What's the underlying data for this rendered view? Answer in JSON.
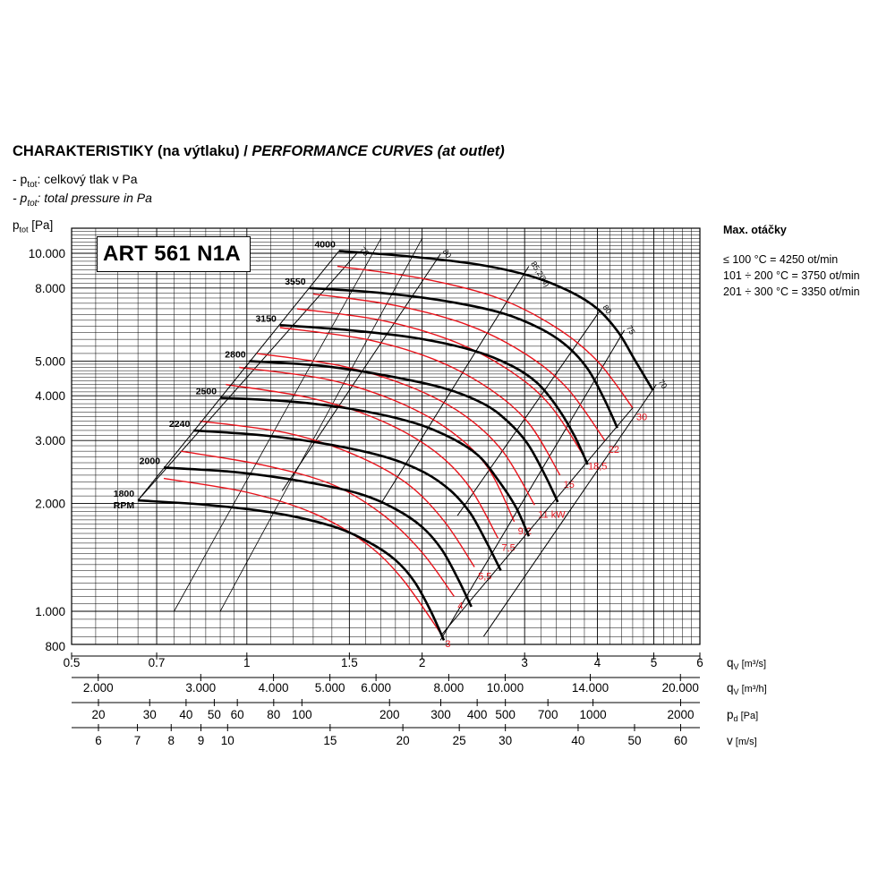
{
  "header": {
    "title_cz": "CHARAKTERISTIKY (na výtlaku) /",
    "title_en": "PERFORMANCE CURVES (at outlet)",
    "note1_prefix": "- p",
    "note1_sub": "tot",
    "note1_text": ": celkový tlak v Pa",
    "note2_prefix": "- p",
    "note2_sub": "tot",
    "note2_text": ": total pressure in Pa"
  },
  "model": "ART 561 N1A",
  "max_rpm": {
    "title": "Max. otáčky",
    "lines": [
      "≤ 100 °C = 4250 ot/min",
      "101 ÷ 200 °C = 3750 ot/min",
      "201 ÷ 300 °C = 3350 ot/min"
    ]
  },
  "colors": {
    "speed_curve": "#000000",
    "power_curve": "#e8141c",
    "grid": "#000000"
  },
  "chart_data": {
    "type": "line",
    "yscale": "log",
    "xscale": "log",
    "ylabel_main": "p",
    "ylabel_sub": "tot",
    "ylabel_unit": "[Pa]",
    "ylim": [
      800,
      12000
    ],
    "xlim": [
      0.5,
      6
    ],
    "y_ticks": [
      {
        "v": 800,
        "l": "800"
      },
      {
        "v": 1000,
        "l": "1.000"
      },
      {
        "v": 2000,
        "l": "2.000"
      },
      {
        "v": 3000,
        "l": "3.000"
      },
      {
        "v": 4000,
        "l": "4.000"
      },
      {
        "v": 5000,
        "l": "5.000"
      },
      {
        "v": 8000,
        "l": "8.000"
      },
      {
        "v": 10000,
        "l": "10.000"
      }
    ],
    "x_axes": [
      {
        "label": "q",
        "sub": "V",
        "unit": "[m³/s]",
        "ticks": [
          {
            "v": 0.5,
            "l": "0.5"
          },
          {
            "v": 0.7,
            "l": "0.7"
          },
          {
            "v": 1,
            "l": "1"
          },
          {
            "v": 1.5,
            "l": "1.5"
          },
          {
            "v": 2,
            "l": "2"
          },
          {
            "v": 3,
            "l": "3"
          },
          {
            "v": 4,
            "l": "4"
          },
          {
            "v": 5,
            "l": "5"
          },
          {
            "v": 6,
            "l": "6"
          }
        ]
      },
      {
        "label": "q",
        "sub": "V",
        "unit": "[m³/h]",
        "ticks": [
          {
            "v": 2000,
            "l": "2.000"
          },
          {
            "v": 3000,
            "l": "3.000"
          },
          {
            "v": 4000,
            "l": "4.000"
          },
          {
            "v": 5000,
            "l": "5.000"
          },
          {
            "v": 6000,
            "l": "6.000"
          },
          {
            "v": 8000,
            "l": "8.000"
          },
          {
            "v": 10000,
            "l": "10.000"
          },
          {
            "v": 14000,
            "l": "14.000"
          },
          {
            "v": 20000,
            "l": "20.000"
          }
        ]
      },
      {
        "label": "p",
        "sub": "d",
        "unit": "[Pa]",
        "ticks": [
          {
            "v": 20,
            "l": "20"
          },
          {
            "v": 30,
            "l": "30"
          },
          {
            "v": 40,
            "l": "40"
          },
          {
            "v": 50,
            "l": "50"
          },
          {
            "v": 60,
            "l": "60"
          },
          {
            "v": 80,
            "l": "80"
          },
          {
            "v": 100,
            "l": "100"
          },
          {
            "v": 200,
            "l": "200"
          },
          {
            "v": 300,
            "l": "300"
          },
          {
            "v": 400,
            "l": "400"
          },
          {
            "v": 500,
            "l": "500"
          },
          {
            "v": 700,
            "l": "700"
          },
          {
            "v": 1000,
            "l": "1000"
          },
          {
            "v": 2000,
            "l": "2000"
          }
        ]
      },
      {
        "label": "v",
        "sub": "",
        "unit": "[m/s]",
        "ticks": [
          {
            "v": 6,
            "l": "6"
          },
          {
            "v": 7,
            "l": "7"
          },
          {
            "v": 8,
            "l": "8"
          },
          {
            "v": 9,
            "l": "9"
          },
          {
            "v": 10,
            "l": "10"
          },
          {
            "v": 15,
            "l": "15"
          },
          {
            "v": 20,
            "l": "20"
          },
          {
            "v": 25,
            "l": "25"
          },
          {
            "v": 30,
            "l": "30"
          },
          {
            "v": 40,
            "l": "40"
          },
          {
            "v": 50,
            "l": "50"
          },
          {
            "v": 60,
            "l": "60"
          }
        ]
      }
    ],
    "speed_curves": [
      {
        "name": "4000",
        "points": [
          [
            1.44,
            10150
          ],
          [
            1.9,
            9800
          ],
          [
            2.5,
            9300
          ],
          [
            3.1,
            8600
          ],
          [
            3.6,
            7800
          ],
          [
            4.0,
            7000
          ],
          [
            4.35,
            6000
          ],
          [
            4.65,
            5000
          ],
          [
            4.98,
            4150
          ]
        ]
      },
      {
        "name": "3550",
        "points": [
          [
            1.28,
            8000
          ],
          [
            1.7,
            7750
          ],
          [
            2.2,
            7350
          ],
          [
            2.75,
            6800
          ],
          [
            3.2,
            6150
          ],
          [
            3.55,
            5500
          ],
          [
            3.85,
            4750
          ],
          [
            4.1,
            3950
          ],
          [
            4.33,
            3250
          ]
        ]
      },
      {
        "name": "3150",
        "points": [
          [
            1.14,
            6300
          ],
          [
            1.5,
            6100
          ],
          [
            1.95,
            5800
          ],
          [
            2.45,
            5350
          ],
          [
            2.85,
            4850
          ],
          [
            3.15,
            4350
          ],
          [
            3.4,
            3750
          ],
          [
            3.65,
            3100
          ],
          [
            3.85,
            2570
          ]
        ]
      },
      {
        "name": "2800",
        "points": [
          [
            1.01,
            5000
          ],
          [
            1.34,
            4850
          ],
          [
            1.74,
            4550
          ],
          [
            2.18,
            4200
          ],
          [
            2.55,
            3800
          ],
          [
            2.8,
            3400
          ],
          [
            3.03,
            2950
          ],
          [
            3.24,
            2430
          ],
          [
            3.42,
            2020
          ]
        ]
      },
      {
        "name": "2500",
        "points": [
          [
            0.9,
            3950
          ],
          [
            1.2,
            3850
          ],
          [
            1.55,
            3650
          ],
          [
            1.95,
            3350
          ],
          [
            2.26,
            3030
          ],
          [
            2.5,
            2720
          ],
          [
            2.7,
            2330
          ],
          [
            2.9,
            1950
          ],
          [
            3.05,
            1620
          ]
        ]
      },
      {
        "name": "2240",
        "points": [
          [
            0.81,
            3200
          ],
          [
            1.07,
            3100
          ],
          [
            1.39,
            2920
          ],
          [
            1.74,
            2690
          ],
          [
            2.02,
            2440
          ],
          [
            2.24,
            2170
          ],
          [
            2.42,
            1880
          ],
          [
            2.58,
            1560
          ],
          [
            2.73,
            1300
          ]
        ]
      },
      {
        "name": "2000",
        "points": [
          [
            0.72,
            2520
          ],
          [
            0.95,
            2450
          ],
          [
            1.24,
            2310
          ],
          [
            1.56,
            2130
          ],
          [
            1.8,
            1930
          ],
          [
            2.0,
            1720
          ],
          [
            2.16,
            1490
          ],
          [
            2.3,
            1240
          ],
          [
            2.43,
            1030
          ]
        ]
      },
      {
        "name": "1800",
        "points": [
          [
            0.65,
            2040
          ],
          [
            0.86,
            1980
          ],
          [
            1.12,
            1880
          ],
          [
            1.4,
            1730
          ],
          [
            1.62,
            1560
          ],
          [
            1.8,
            1390
          ],
          [
            1.94,
            1210
          ],
          [
            2.07,
            1000
          ],
          [
            2.18,
            830
          ]
        ]
      }
    ],
    "speed_label_last": "RPM",
    "power_curves": [
      {
        "name": "30",
        "points": [
          [
            1.43,
            9200
          ],
          [
            2.0,
            8500
          ],
          [
            2.7,
            7500
          ],
          [
            3.4,
            6200
          ],
          [
            4.0,
            5000
          ],
          [
            4.6,
            3700
          ]
        ]
      },
      {
        "name": "22",
        "points": [
          [
            1.3,
            7700
          ],
          [
            1.8,
            7150
          ],
          [
            2.4,
            6300
          ],
          [
            3.0,
            5250
          ],
          [
            3.55,
            4200
          ],
          [
            4.12,
            3000
          ]
        ]
      },
      {
        "name": "18,5",
        "points": [
          [
            1.22,
            7000
          ],
          [
            1.7,
            6500
          ],
          [
            2.25,
            5700
          ],
          [
            2.8,
            4750
          ],
          [
            3.3,
            3800
          ],
          [
            3.8,
            2700
          ]
        ]
      },
      {
        "name": "15",
        "points": [
          [
            1.14,
            6200
          ],
          [
            1.6,
            5750
          ],
          [
            2.1,
            5050
          ],
          [
            2.6,
            4200
          ],
          [
            3.05,
            3350
          ],
          [
            3.45,
            2400
          ]
        ]
      },
      {
        "name": "11 kW",
        "points": [
          [
            1.04,
            5250
          ],
          [
            1.45,
            4850
          ],
          [
            1.9,
            4250
          ],
          [
            2.35,
            3550
          ],
          [
            2.75,
            2800
          ],
          [
            3.12,
            1980
          ]
        ]
      },
      {
        "name": "9,2",
        "points": [
          [
            0.97,
            4800
          ],
          [
            1.37,
            4450
          ],
          [
            1.78,
            3900
          ],
          [
            2.2,
            3250
          ],
          [
            2.58,
            2550
          ],
          [
            2.88,
            1780
          ]
        ]
      },
      {
        "name": "7,5",
        "points": [
          [
            0.92,
            4300
          ],
          [
            1.28,
            3950
          ],
          [
            1.67,
            3450
          ],
          [
            2.07,
            2850
          ],
          [
            2.4,
            2250
          ],
          [
            2.7,
            1600
          ]
        ]
      },
      {
        "name": "5,5",
        "points": [
          [
            0.83,
            3400
          ],
          [
            1.17,
            3150
          ],
          [
            1.52,
            2750
          ],
          [
            1.88,
            2280
          ],
          [
            2.18,
            1790
          ],
          [
            2.46,
            1330
          ]
        ]
      },
      {
        "name": "4",
        "points": [
          [
            0.77,
            2800
          ],
          [
            1.08,
            2550
          ],
          [
            1.41,
            2250
          ],
          [
            1.72,
            1850
          ],
          [
            2.0,
            1460
          ],
          [
            2.27,
            1100
          ]
        ]
      },
      {
        "name": "3",
        "points": [
          [
            0.72,
            2350
          ],
          [
            1.0,
            2150
          ],
          [
            1.3,
            1880
          ],
          [
            1.6,
            1550
          ],
          [
            1.85,
            1230
          ],
          [
            2.16,
            860
          ]
        ]
      }
    ],
    "efficiency_lines": [
      {
        "name": "75",
        "points": [
          [
            0.65,
            2040
          ],
          [
            1.55,
            10050
          ]
        ]
      },
      {
        "name": "80",
        "points": [
          [
            1.15,
            2170
          ],
          [
            2.15,
            9950
          ]
        ]
      },
      {
        "name": "85,2(%)",
        "points": [
          [
            1.7,
            2000
          ],
          [
            3.05,
            9200
          ]
        ]
      },
      {
        "name": "80",
        "points": [
          [
            2.3,
            1850
          ],
          [
            4.05,
            6950
          ]
        ]
      },
      {
        "name": "75",
        "points": [
          [
            2.15,
            830
          ],
          [
            4.45,
            6100
          ]
        ]
      },
      {
        "name": "70",
        "points": [
          [
            2.55,
            850
          ],
          [
            5.05,
            4300
          ]
        ]
      }
    ],
    "aux_diagonals": [
      {
        "points": [
          [
            0.9,
            1000
          ],
          [
            2.0,
            11000
          ]
        ]
      },
      {
        "points": [
          [
            0.75,
            1000
          ],
          [
            1.7,
            11000
          ]
        ]
      }
    ]
  }
}
